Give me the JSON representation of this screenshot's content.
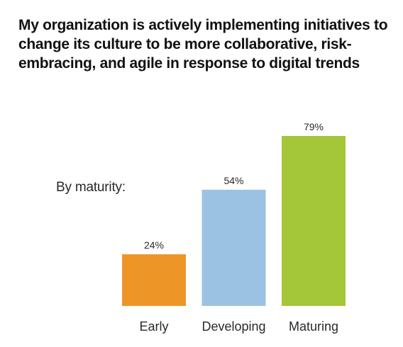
{
  "title": "My organization is actively implementing initiatives to change its culture to be more collaborative, risk-embracing, and agile in response to digital trends",
  "group_label": "By maturity:",
  "colors": {
    "Early": "#ED9526",
    "Developing": "#9CC2E3",
    "Maturing": "#A4C639"
  },
  "chart_data": {
    "type": "bar",
    "title": "My organization is actively implementing initiatives to change its culture to be more collaborative, risk-embracing, and agile in response to digital trends",
    "categories": [
      "Early",
      "Developing",
      "Maturing"
    ],
    "values": [
      24,
      54,
      79
    ],
    "value_labels": [
      "24%",
      "54%",
      "79%"
    ],
    "unit": "%",
    "xlabel": "",
    "ylabel": "",
    "ylim": [
      0,
      100
    ],
    "grid": false,
    "legend": "none"
  }
}
